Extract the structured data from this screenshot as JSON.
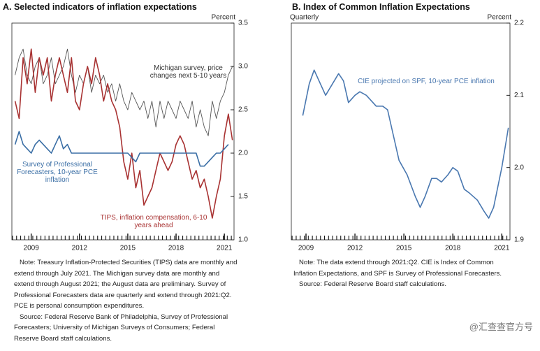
{
  "chart_data": [
    {
      "type": "line",
      "title": "A. Selected indicators of inflation expectations",
      "y_label": "Percent",
      "xlim": [
        2007.8,
        2021.6
      ],
      "xticks": [
        2009,
        2012,
        2015,
        2018,
        2021
      ],
      "ylim": [
        1,
        3.5
      ],
      "yticks": [
        {
          "value": 1,
          "label": "1.0"
        },
        1.5,
        {
          "value": 2,
          "label": "2.0"
        },
        2.5,
        {
          "value": 3,
          "label": "3.0"
        },
        3.5
      ],
      "series": [
        {
          "name": "Michigan survey, price changes next 5-10 years",
          "color": "#555555",
          "x": [
            2008,
            2008.25,
            2008.5,
            2008.75,
            2009,
            2009.25,
            2009.5,
            2009.75,
            2010,
            2010.25,
            2010.5,
            2010.75,
            2011,
            2011.25,
            2011.5,
            2011.75,
            2012,
            2012.25,
            2012.5,
            2012.75,
            2013,
            2013.25,
            2013.5,
            2013.75,
            2014,
            2014.25,
            2014.5,
            2014.75,
            2015,
            2015.25,
            2015.5,
            2015.75,
            2016,
            2016.25,
            2016.5,
            2016.75,
            2017,
            2017.25,
            2017.5,
            2017.75,
            2018,
            2018.25,
            2018.5,
            2018.75,
            2019,
            2019.25,
            2019.5,
            2019.75,
            2020,
            2020.25,
            2020.5,
            2020.75,
            2021,
            2021.25,
            2021.5
          ],
          "values": [
            2.9,
            3.1,
            3.2,
            2.9,
            2.8,
            3.0,
            3.1,
            2.8,
            2.9,
            3.1,
            2.8,
            2.9,
            3.0,
            3.2,
            2.9,
            2.7,
            2.9,
            2.8,
            3.0,
            2.7,
            2.9,
            2.8,
            2.9,
            2.7,
            2.8,
            2.6,
            2.8,
            2.6,
            2.5,
            2.7,
            2.6,
            2.5,
            2.6,
            2.4,
            2.6,
            2.3,
            2.6,
            2.4,
            2.6,
            2.5,
            2.4,
            2.6,
            2.5,
            2.4,
            2.6,
            2.3,
            2.5,
            2.3,
            2.2,
            2.6,
            2.4,
            2.6,
            2.7,
            2.9,
            3.0
          ]
        },
        {
          "name": "TIPS, inflation compensation, 6-10 years ahead",
          "color": "#a83232",
          "x": [
            2008,
            2008.25,
            2008.5,
            2008.75,
            2009,
            2009.25,
            2009.5,
            2009.75,
            2010,
            2010.25,
            2010.5,
            2010.75,
            2011,
            2011.25,
            2011.5,
            2011.75,
            2012,
            2012.25,
            2012.5,
            2012.75,
            2013,
            2013.25,
            2013.5,
            2013.75,
            2014,
            2014.25,
            2014.5,
            2014.75,
            2015,
            2015.25,
            2015.5,
            2015.75,
            2016,
            2016.25,
            2016.5,
            2016.75,
            2017,
            2017.25,
            2017.5,
            2017.75,
            2018,
            2018.25,
            2018.5,
            2018.75,
            2019,
            2019.25,
            2019.5,
            2019.75,
            2020,
            2020.25,
            2020.5,
            2020.75,
            2021,
            2021.25,
            2021.5
          ],
          "values": [
            2.6,
            2.4,
            3.1,
            2.8,
            3.2,
            2.7,
            3.1,
            2.9,
            3.1,
            2.6,
            2.9,
            3.1,
            2.9,
            2.7,
            3.1,
            2.6,
            2.5,
            2.8,
            3.0,
            2.8,
            3.1,
            2.9,
            2.6,
            2.8,
            2.6,
            2.5,
            2.3,
            1.9,
            1.7,
            2.0,
            1.6,
            1.8,
            1.4,
            1.5,
            1.6,
            1.8,
            2.0,
            1.9,
            1.8,
            1.9,
            2.1,
            2.2,
            2.1,
            1.9,
            1.7,
            1.8,
            1.6,
            1.7,
            1.5,
            1.25,
            1.5,
            1.7,
            2.2,
            2.45,
            2.15
          ]
        },
        {
          "name": "Survey of Professional Forecasters, 10-year PCE inflation",
          "color": "#3a6ea5",
          "x": [
            2008,
            2008.25,
            2008.5,
            2008.75,
            2009,
            2009.25,
            2009.5,
            2009.75,
            2010,
            2010.25,
            2010.5,
            2010.75,
            2011,
            2011.25,
            2011.5,
            2011.75,
            2012,
            2012.25,
            2012.5,
            2012.75,
            2013,
            2013.25,
            2013.5,
            2013.75,
            2014,
            2014.25,
            2014.5,
            2014.75,
            2015,
            2015.25,
            2015.5,
            2015.75,
            2016,
            2016.25,
            2016.5,
            2016.75,
            2017,
            2017.25,
            2017.5,
            2017.75,
            2018,
            2018.25,
            2018.5,
            2018.75,
            2019,
            2019.25,
            2019.5,
            2019.75,
            2020,
            2020.25,
            2020.5,
            2020.75,
            2021,
            2021.25
          ],
          "values": [
            2.1,
            2.25,
            2.1,
            2.05,
            2.0,
            2.1,
            2.15,
            2.1,
            2.05,
            2.0,
            2.1,
            2.2,
            2.05,
            2.1,
            2.0,
            2.0,
            2.0,
            2.0,
            2.0,
            2.0,
            2.0,
            2.0,
            2.0,
            2.0,
            2.0,
            2.0,
            2.0,
            2.0,
            2.0,
            1.95,
            1.9,
            2.0,
            2.0,
            2.0,
            2.0,
            2.0,
            2.0,
            2.0,
            2.0,
            2.0,
            2.0,
            2.0,
            2.0,
            2.0,
            2.0,
            2.0,
            1.85,
            1.85,
            1.9,
            1.95,
            2.0,
            2.0,
            2.05,
            2.1
          ]
        }
      ],
      "note": "Note: Treasury Inflation-Protected Securities (TIPS) data are monthly and extend through July 2021. The Michigan survey data are monthly and extend through August 2021; the August data are preliminary. Survey of Professional Forecasters data are quarterly and extend through 2021:Q2. PCE is personal consumption expenditures.",
      "source": "Source: Federal Reserve Bank of Philadelphia, Survey of Professional Forecasters; University of Michigan Surveys of Consumers; Federal Reserve Board staff calculations."
    },
    {
      "type": "line",
      "title": "B. Index of Common Inflation Expectations",
      "y_label": "Percent",
      "left_label": "Quarterly",
      "xlim": [
        2008.1,
        2021.5
      ],
      "xticks": [
        2009,
        2012,
        2015,
        2018,
        2021
      ],
      "ylim": [
        1.9,
        2.2
      ],
      "yticks": [
        1.9,
        {
          "value": 2,
          "label": "2.0"
        },
        2.1,
        2.2
      ],
      "series": [
        {
          "name": "CIE projected on SPF, 10-year PCE inflation",
          "color": "#4a78b0",
          "x": [
            2008.8,
            2009.2,
            2009.5,
            2009.8,
            2010.2,
            2010.6,
            2011,
            2011.3,
            2011.6,
            2012,
            2012.3,
            2012.7,
            2013.3,
            2013.7,
            2014,
            2014.3,
            2014.7,
            2015.2,
            2015.7,
            2016,
            2016.3,
            2016.7,
            2017,
            2017.3,
            2017.7,
            2018,
            2018.3,
            2018.7,
            2019,
            2019.5,
            2019.9,
            2020.2,
            2020.5,
            2021,
            2021.4
          ],
          "values": [
            2.072,
            2.116,
            2.135,
            2.12,
            2.1,
            2.115,
            2.13,
            2.12,
            2.09,
            2.1,
            2.105,
            2.1,
            2.085,
            2.085,
            2.08,
            2.05,
            2.01,
            1.99,
            1.96,
            1.945,
            1.96,
            1.985,
            1.985,
            1.98,
            1.99,
            2.0,
            1.995,
            1.97,
            1.965,
            1.955,
            1.94,
            1.93,
            1.945,
            2.0,
            2.055
          ]
        }
      ],
      "note": "Note: The data extend through 2021:Q2. CIE is Index of Common Inflation Expectations, and SPF is Survey of Professional Forecasters.",
      "source": "Source: Federal Reserve Board staff calculations."
    }
  ],
  "watermark": "@汇查查官方号"
}
